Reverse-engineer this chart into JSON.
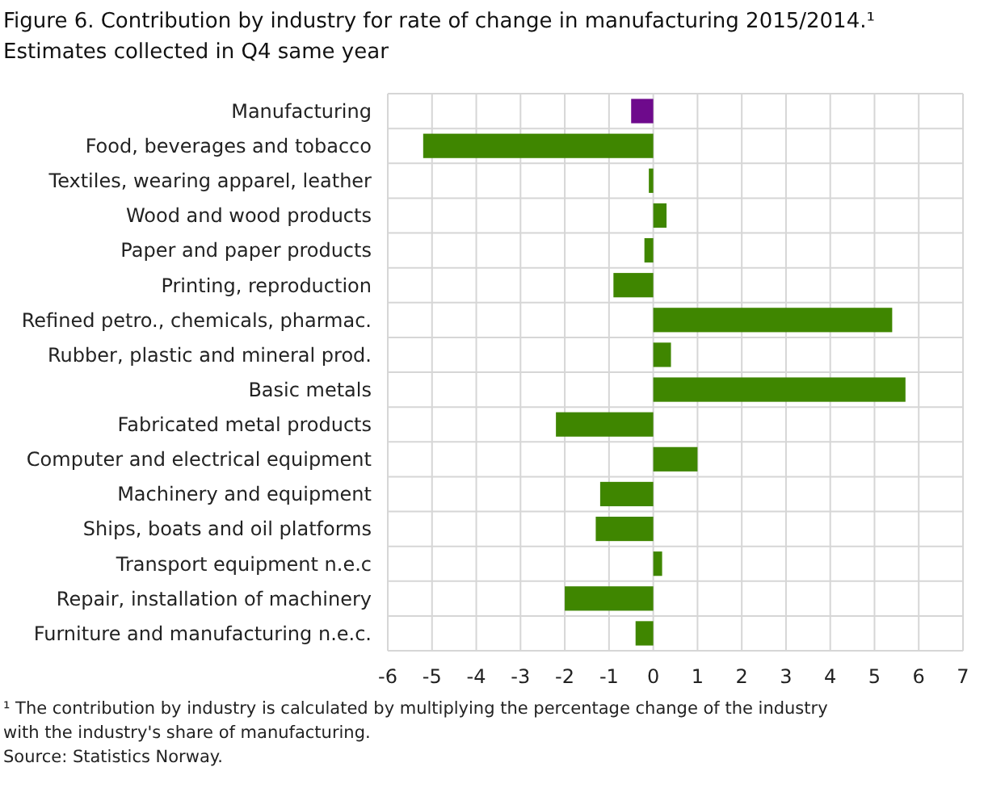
{
  "chart_data": {
    "type": "bar",
    "orientation": "horizontal",
    "title": "Figure 6. Contribution by industry for rate of change in manufacturing  2015/2014.¹",
    "subtitle": "Estimates collected in Q4 same year",
    "categories": [
      "Manufacturing",
      "Food, beverages and tobacco",
      "Textiles, wearing apparel, leather",
      "Wood and wood products",
      "Paper and paper products",
      "Printing, reproduction",
      "Refined petro., chemicals, pharmac.",
      "Rubber, plastic and mineral prod.",
      "Basic metals",
      "Fabricated metal products",
      "Computer and electrical equipment",
      "Machinery and equipment",
      "Ships, boats and oil platforms",
      "Transport equipment n.e.c",
      "Repair, installation of machinery",
      "Furniture and manufacturing n.e.c."
    ],
    "values": [
      -0.5,
      -5.2,
      -0.1,
      0.3,
      -0.2,
      -0.9,
      5.4,
      0.4,
      5.7,
      -2.2,
      1.0,
      -1.2,
      -1.3,
      0.2,
      -2.0,
      -0.4
    ],
    "colors": [
      "#6e0a8c",
      "#3f8600",
      "#3f8600",
      "#3f8600",
      "#3f8600",
      "#3f8600",
      "#3f8600",
      "#3f8600",
      "#3f8600",
      "#3f8600",
      "#3f8600",
      "#3f8600",
      "#3f8600",
      "#3f8600",
      "#3f8600",
      "#3f8600"
    ],
    "xlim": [
      -6,
      7
    ],
    "xticks": [
      -6,
      -5,
      -4,
      -3,
      -2,
      -1,
      0,
      1,
      2,
      3,
      4,
      5,
      6,
      7
    ],
    "grid": true,
    "annotations": [
      "¹ The contribution  by industry is calculated by multiplying  the percentage change of the  industry with the industry's share of manufacturing.",
      "Source: Statistics Norway."
    ]
  }
}
